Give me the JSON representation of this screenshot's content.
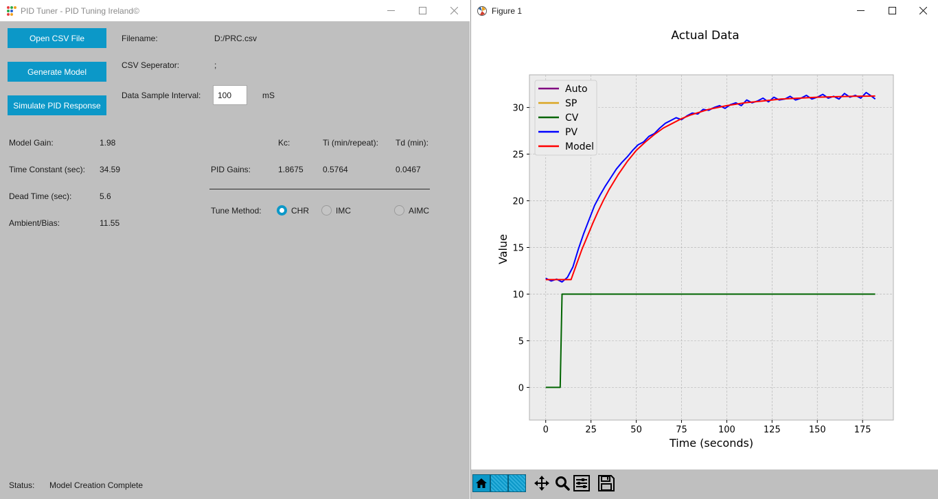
{
  "left_window": {
    "title": "PID Tuner - PID Tuning Ireland©",
    "buttons": {
      "open_csv": "Open CSV File",
      "generate_model": "Generate Model",
      "simulate": "Simulate PID Response"
    },
    "file": {
      "filename_label": "Filename:",
      "filename_value": "D:/PRC.csv",
      "separator_label": "CSV Seperator:",
      "separator_value": ";",
      "interval_label": "Data Sample Interval:",
      "interval_value": "100",
      "interval_unit": "mS"
    },
    "model": {
      "gain_label": "Model Gain:",
      "gain_value": "1.98",
      "time_constant_label": "Time Constant (sec):",
      "time_constant_value": "34.59",
      "dead_time_label": "Dead Time (sec):",
      "dead_time_value": "5.6",
      "bias_label": "Ambient/Bias:",
      "bias_value": "11.55"
    },
    "pid": {
      "kc_header": "Kc:",
      "ti_header": "Ti (min/repeat):",
      "td_header": "Td (min):",
      "gains_label": "PID Gains:",
      "kc_value": "1.8675",
      "ti_value": "0.5764",
      "td_value": "0.0467"
    },
    "tune": {
      "label": "Tune Method:",
      "options": [
        "CHR",
        "IMC",
        "AIMC"
      ],
      "selected": "CHR"
    },
    "status": {
      "label": "Status:",
      "value": "Model Creation Complete"
    }
  },
  "right_window": {
    "title": "Figure 1",
    "toolbar_icons": [
      "home-icon",
      "back-icon",
      "forward-icon",
      "pan-icon",
      "zoom-icon",
      "configure-icon",
      "save-icon"
    ]
  },
  "chart_data": {
    "type": "line",
    "title": "Actual Data",
    "xlabel": "Time (seconds)",
    "ylabel": "Value",
    "xlim": [
      -9,
      192
    ],
    "ylim": [
      -3.5,
      33.5
    ],
    "xticks": [
      0,
      25,
      50,
      75,
      100,
      125,
      150,
      175
    ],
    "yticks": [
      0,
      5,
      10,
      15,
      20,
      25,
      30
    ],
    "grid": true,
    "legend_position": "top-left",
    "background": "#ececec",
    "series": [
      {
        "name": "Auto",
        "color": "#800080",
        "x": [],
        "y": []
      },
      {
        "name": "SP",
        "color": "#daa520",
        "x": [],
        "y": []
      },
      {
        "name": "CV",
        "color": "#006400",
        "x": [
          0,
          8,
          9,
          182
        ],
        "y": [
          0,
          0,
          10,
          10
        ]
      },
      {
        "name": "PV",
        "color": "#0000ff",
        "x": [
          0,
          3,
          6,
          9,
          12,
          15,
          18,
          21,
          24,
          27,
          30,
          33,
          36,
          39,
          42,
          45,
          48,
          51,
          54,
          57,
          60,
          63,
          66,
          69,
          72,
          75,
          78,
          81,
          84,
          87,
          90,
          93,
          96,
          99,
          102,
          105,
          108,
          111,
          114,
          117,
          120,
          123,
          126,
          129,
          132,
          135,
          138,
          141,
          144,
          147,
          150,
          153,
          156,
          159,
          162,
          165,
          168,
          171,
          174,
          177,
          180,
          182
        ],
        "y": [
          11.7,
          11.4,
          11.6,
          11.3,
          11.8,
          12.9,
          14.8,
          16.5,
          18.0,
          19.5,
          20.6,
          21.6,
          22.5,
          23.4,
          24.1,
          24.7,
          25.4,
          26.0,
          26.3,
          26.9,
          27.2,
          27.8,
          28.3,
          28.6,
          28.9,
          28.7,
          29.1,
          29.4,
          29.3,
          29.8,
          29.7,
          30.0,
          30.2,
          29.9,
          30.3,
          30.5,
          30.2,
          30.8,
          30.5,
          30.7,
          31.0,
          30.6,
          31.1,
          30.8,
          30.9,
          31.2,
          30.8,
          31.0,
          31.3,
          30.9,
          31.1,
          31.4,
          31.0,
          31.2,
          30.9,
          31.5,
          31.1,
          31.3,
          31.0,
          31.6,
          31.2,
          30.9
        ]
      },
      {
        "name": "Model",
        "color": "#ff0000",
        "x": [
          0,
          14,
          17,
          20,
          23,
          26,
          29,
          32,
          35,
          40,
          45,
          50,
          55,
          60,
          65,
          70,
          75,
          80,
          85,
          90,
          95,
          100,
          110,
          120,
          130,
          140,
          150,
          160,
          170,
          180,
          182
        ],
        "y": [
          11.55,
          11.55,
          13.2,
          14.8,
          16.2,
          17.6,
          18.9,
          20.1,
          21.2,
          22.8,
          24.2,
          25.4,
          26.3,
          27.1,
          27.8,
          28.3,
          28.8,
          29.2,
          29.5,
          29.8,
          30.0,
          30.2,
          30.5,
          30.7,
          30.9,
          31.0,
          31.1,
          31.15,
          31.2,
          31.22,
          31.23
        ]
      }
    ]
  }
}
